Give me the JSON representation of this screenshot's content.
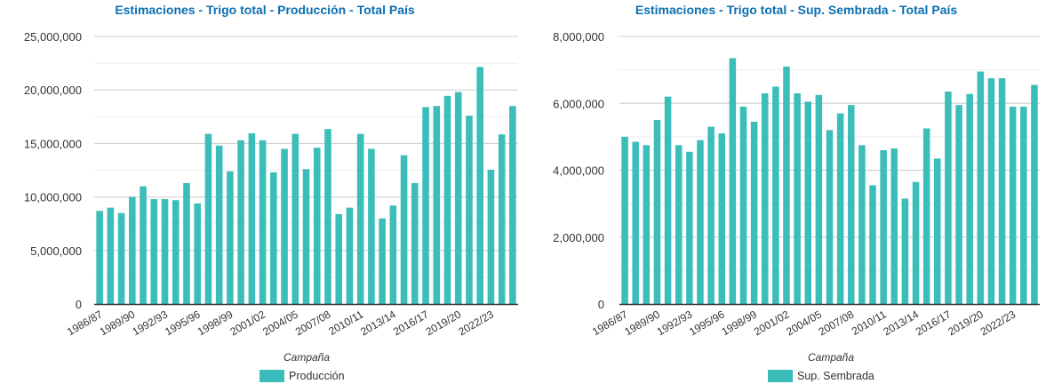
{
  "theme": {
    "bar_color": "#3bbdb9",
    "title_color": "#0b6fb0",
    "grid_major": "#cccccc",
    "grid_minor": "#eeeeee",
    "axis_color": "#333333"
  },
  "chart_data": [
    {
      "type": "bar",
      "title": "Estimaciones - Trigo total - Producción - Total País",
      "xlabel": "Campaña",
      "ylabel": "",
      "ylim": [
        0,
        25000000
      ],
      "yticks": [
        0,
        5000000,
        10000000,
        15000000,
        20000000,
        25000000
      ],
      "ytick_labels": [
        "0",
        "5,000,000",
        "10,000,000",
        "15,000,000",
        "20,000,000",
        "25,000,000"
      ],
      "grid": true,
      "legend": {
        "position": "bottom-center",
        "entries": [
          "Producción"
        ]
      },
      "categories": [
        "1986/87",
        "1987/88",
        "1988/89",
        "1989/90",
        "1990/91",
        "1991/92",
        "1992/93",
        "1993/94",
        "1994/95",
        "1995/96",
        "1996/97",
        "1997/98",
        "1998/99",
        "1999/00",
        "2000/01",
        "2001/02",
        "2002/03",
        "2003/04",
        "2004/05",
        "2005/06",
        "2006/07",
        "2007/08",
        "2008/09",
        "2009/10",
        "2010/11",
        "2011/12",
        "2012/13",
        "2013/14",
        "2014/15",
        "2015/16",
        "2016/17",
        "2017/18",
        "2018/19",
        "2019/20",
        "2020/21",
        "2021/22",
        "2022/23",
        "2023/24",
        "2024/25"
      ],
      "xtick_labels": [
        "1986/87",
        "1989/90",
        "1992/93",
        "1995/96",
        "1998/99",
        "2001/02",
        "2004/05",
        "2007/08",
        "2010/11",
        "2013/14",
        "2016/17",
        "2019/20",
        "2022/23"
      ],
      "series": [
        {
          "name": "Producción",
          "values": [
            8700000,
            9000000,
            8500000,
            10000000,
            11000000,
            9800000,
            9800000,
            9700000,
            11300000,
            9400000,
            15900000,
            14800000,
            12400000,
            15300000,
            15950000,
            15300000,
            12300000,
            14500000,
            15900000,
            12600000,
            14600000,
            16350000,
            8400000,
            9000000,
            15900000,
            14500000,
            8000000,
            9200000,
            13900000,
            11300000,
            18400000,
            18500000,
            19450000,
            19800000,
            17600000,
            22150000,
            12550000,
            15850000,
            18500000
          ]
        }
      ]
    },
    {
      "type": "bar",
      "title": "Estimaciones - Trigo total - Sup. Sembrada - Total País",
      "xlabel": "Campaña",
      "ylabel": "",
      "ylim": [
        0,
        8000000
      ],
      "yticks": [
        0,
        2000000,
        4000000,
        6000000,
        8000000
      ],
      "ytick_labels": [
        "0",
        "2,000,000",
        "4,000,000",
        "6,000,000",
        "8,000,000"
      ],
      "grid": true,
      "legend": {
        "position": "bottom-center",
        "entries": [
          "Sup. Sembrada"
        ]
      },
      "categories": [
        "1986/87",
        "1987/88",
        "1988/89",
        "1989/90",
        "1990/91",
        "1991/92",
        "1992/93",
        "1993/94",
        "1994/95",
        "1995/96",
        "1996/97",
        "1997/98",
        "1998/99",
        "1999/00",
        "2000/01",
        "2001/02",
        "2002/03",
        "2003/04",
        "2004/05",
        "2005/06",
        "2006/07",
        "2007/08",
        "2008/09",
        "2009/10",
        "2010/11",
        "2011/12",
        "2012/13",
        "2013/14",
        "2014/15",
        "2015/16",
        "2016/17",
        "2017/18",
        "2018/19",
        "2019/20",
        "2020/21",
        "2021/22",
        "2022/23",
        "2023/24",
        "2024/25"
      ],
      "xtick_labels": [
        "1986/87",
        "1989/90",
        "1992/93",
        "1995/96",
        "1998/99",
        "2001/02",
        "2004/05",
        "2007/08",
        "2010/11",
        "2013/14",
        "2016/17",
        "2019/20",
        "2022/23"
      ],
      "series": [
        {
          "name": "Sup. Sembrada",
          "values": [
            5000000,
            4850000,
            4750000,
            5500000,
            6200000,
            4750000,
            4550000,
            4900000,
            5300000,
            5100000,
            7350000,
            5900000,
            5450000,
            6300000,
            6500000,
            7100000,
            6300000,
            6050000,
            6250000,
            5200000,
            5700000,
            5950000,
            4750000,
            3550000,
            4600000,
            4650000,
            3150000,
            3650000,
            5250000,
            4350000,
            6350000,
            5950000,
            6280000,
            6950000,
            6750000,
            6750000,
            5900000,
            5900000,
            6550000
          ]
        }
      ]
    }
  ]
}
